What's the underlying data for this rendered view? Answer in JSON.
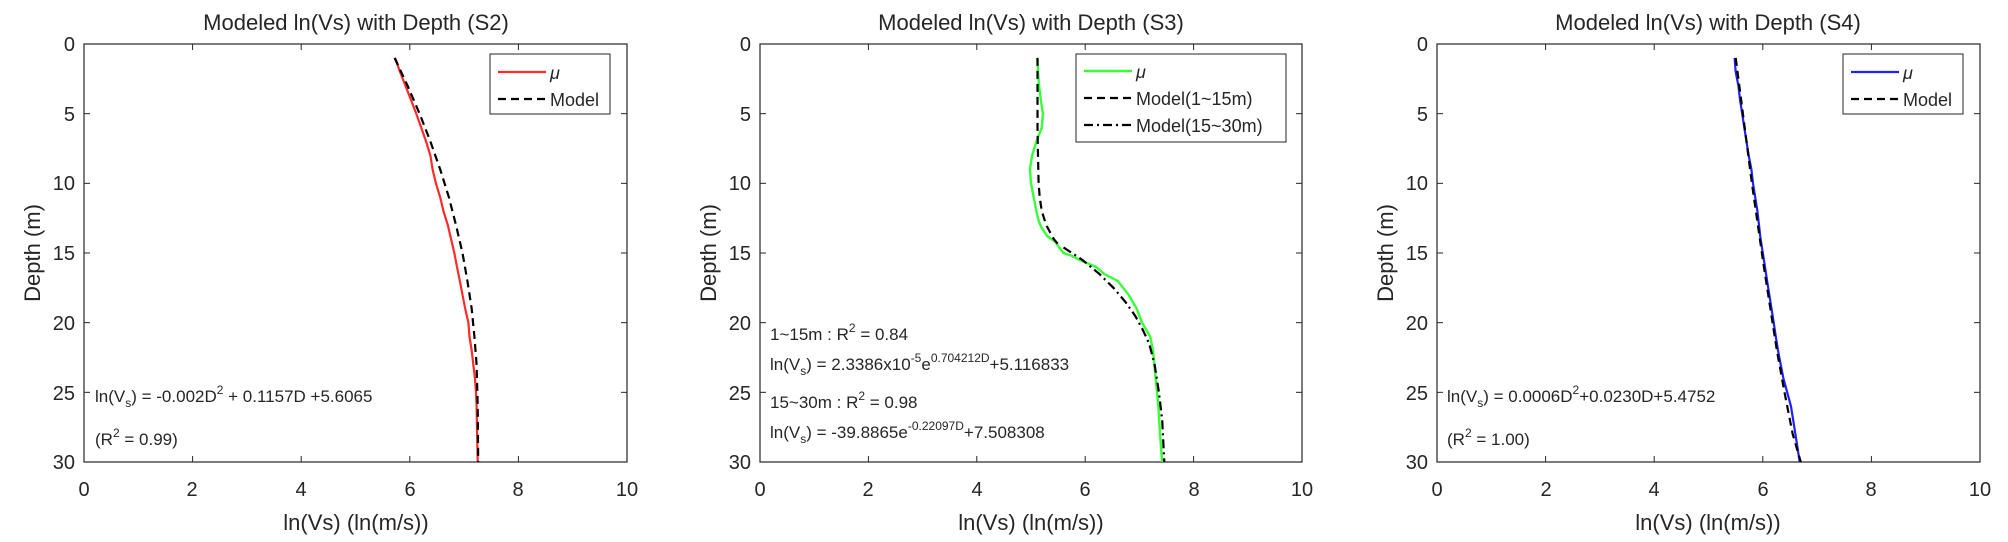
{
  "colors": {
    "s2": "#ff2a2a",
    "s3": "#39ff3a",
    "s4": "#2020ff",
    "model": "#000000",
    "axis": "#262626"
  },
  "chart_data": [
    {
      "type": "line",
      "title": "Modeled ln(Vs) with Depth (S2)",
      "xlabel": "ln(Vs) (ln(m/s))",
      "ylabel": "Depth (m)",
      "xlim": [
        0,
        10
      ],
      "ylim": [
        30,
        0
      ],
      "xticks": [
        "0",
        "2",
        "4",
        "6",
        "8",
        "10"
      ],
      "yticks": [
        "0",
        "5",
        "10",
        "15",
        "20",
        "25",
        "30"
      ],
      "legend_position": "top-right",
      "series": [
        {
          "name": "μ",
          "color": "#ff2a2a",
          "style": "solid",
          "x": [
            5.73,
            5.82,
            5.92,
            6.02,
            6.12,
            6.21,
            6.3,
            6.38,
            6.42,
            6.48,
            6.56,
            6.62,
            6.7,
            6.76,
            6.82,
            6.87,
            6.92,
            6.97,
            7.02,
            7.08,
            7.1,
            7.14,
            7.17,
            7.2,
            7.22,
            7.23,
            7.24,
            7.25
          ],
          "y": [
            1,
            2,
            3,
            4,
            5,
            6,
            7,
            8,
            9,
            10,
            11,
            12,
            13,
            14,
            15,
            16,
            17,
            18,
            19,
            20,
            21,
            22,
            23,
            24,
            25,
            26,
            28,
            30
          ]
        },
        {
          "name": "Model",
          "color": "#000000",
          "style": "dashed",
          "x": [
            5.72,
            5.96,
            6.18,
            6.38,
            6.56,
            6.72,
            6.85,
            6.97,
            7.06,
            7.14,
            7.19,
            7.23,
            7.25,
            7.26
          ],
          "y": [
            1,
            3,
            5,
            7,
            9,
            11,
            13,
            15,
            17,
            19,
            21,
            23,
            26,
            30
          ]
        }
      ],
      "annotations": [
        {
          "pre": "ln(V",
          "sub": "s",
          "mid": ") = -0.002D",
          "sup": "2",
          "post": " + 0.1157D +5.6065"
        },
        {
          "text": "(R",
          "sup": "2",
          "post": " = 0.99)"
        }
      ]
    },
    {
      "type": "line",
      "title": "Modeled ln(Vs) with Depth (S3)",
      "xlabel": "ln(Vs) (ln(m/s))",
      "ylabel": "Depth (m)",
      "xlim": [
        0,
        10
      ],
      "ylim": [
        30,
        0
      ],
      "xticks": [
        "0",
        "2",
        "4",
        "6",
        "8",
        "10"
      ],
      "yticks": [
        "0",
        "5",
        "10",
        "15",
        "20",
        "25",
        "30"
      ],
      "legend_position": "top-right",
      "series": [
        {
          "name": "μ",
          "color": "#39ff3a",
          "style": "solid",
          "x": [
            5.12,
            5.13,
            5.15,
            5.18,
            5.22,
            5.2,
            5.1,
            5.02,
            4.98,
            5.0,
            5.05,
            5.1,
            5.15,
            5.2,
            5.3,
            5.45,
            5.52,
            5.6,
            5.75,
            5.9,
            6.2,
            6.35,
            6.6,
            6.8,
            6.95,
            7.05,
            7.2,
            7.25,
            7.3,
            7.35,
            7.38,
            7.42
          ],
          "y": [
            1,
            2,
            3,
            4,
            5,
            6,
            7,
            8,
            9,
            10,
            11,
            12,
            12.8,
            13.2,
            13.8,
            14.2,
            14.6,
            15,
            15.2,
            15.5,
            16,
            16.5,
            17,
            18,
            19,
            20,
            21,
            22,
            24,
            26,
            28,
            30
          ]
        },
        {
          "name": "Model(1~15m)",
          "color": "#000000",
          "style": "dashed",
          "x": [
            5.12,
            5.12,
            5.12,
            5.13,
            5.14,
            5.16,
            5.2,
            5.28,
            5.42,
            5.55
          ],
          "y": [
            1,
            3,
            6,
            8,
            10,
            11,
            12,
            13,
            14,
            14.6
          ]
        },
        {
          "name": "Model(15~30m)",
          "color": "#000000",
          "style": "dashdot",
          "x": [
            5.6,
            5.95,
            6.26,
            6.52,
            6.74,
            6.92,
            7.06,
            7.18,
            7.28,
            7.36,
            7.42,
            7.46
          ],
          "y": [
            14.6,
            15.5,
            16.5,
            17.5,
            18.5,
            19.5,
            20.5,
            21.5,
            23,
            25,
            27,
            30
          ]
        }
      ],
      "annotations": [
        {
          "text": "1~15m : R",
          "sup": "2",
          "post": " = 0.84"
        },
        {
          "pre": "ln(V",
          "sub": "s",
          "mid": ") = 2.3386x10",
          "sup": "-5",
          "mid2": "e",
          "sup2": "0.704212D",
          "post": "+5.116833"
        },
        {
          "text": "15~30m : R",
          "sup": "2",
          "post": " = 0.98"
        },
        {
          "pre": "ln(V",
          "sub": "s",
          "mid": ") = -39.8865e",
          "sup": "-0.22097D",
          "post": "+7.508308"
        }
      ]
    },
    {
      "type": "line",
      "title": "Modeled ln(Vs) with Depth (S4)",
      "xlabel": "ln(Vs) (ln(m/s))",
      "ylabel": "Depth (m)",
      "xlim": [
        0,
        10
      ],
      "ylim": [
        30,
        0
      ],
      "xticks": [
        "0",
        "2",
        "4",
        "6",
        "8",
        "10"
      ],
      "yticks": [
        "0",
        "5",
        "10",
        "15",
        "20",
        "25",
        "30"
      ],
      "legend_position": "top-right",
      "series": [
        {
          "name": "μ",
          "color": "#2020ff",
          "style": "solid",
          "x": [
            5.48,
            5.5,
            5.55,
            5.58,
            5.62,
            5.66,
            5.7,
            5.74,
            5.79,
            5.82,
            5.86,
            5.9,
            5.93,
            5.96,
            6.0,
            6.04,
            6.08,
            6.12,
            6.16,
            6.2,
            6.24,
            6.28,
            6.33,
            6.38,
            6.45,
            6.52,
            6.6,
            6.68
          ],
          "y": [
            1,
            2,
            3,
            4,
            5,
            6,
            7,
            8,
            9,
            10,
            11,
            12,
            13,
            14,
            15,
            16,
            17,
            18,
            19,
            20,
            21,
            22,
            23,
            24,
            25,
            26,
            28,
            30
          ]
        },
        {
          "name": "Model",
          "color": "#000000",
          "style": "dashed",
          "x": [
            5.5,
            5.6,
            5.7,
            5.8,
            5.91,
            6.02,
            6.14,
            6.26,
            6.4,
            6.55,
            6.7
          ],
          "y": [
            1,
            4,
            7,
            10,
            13,
            16,
            19,
            22,
            25,
            28,
            30
          ]
        }
      ],
      "annotations": [
        {
          "pre": "ln(V",
          "sub": "s",
          "mid": ") = 0.0006D",
          "sup": "2",
          "post": "+0.0230D+5.4752"
        },
        {
          "text": "(R",
          "sup": "2",
          "post": " = 1.00)"
        }
      ]
    }
  ]
}
